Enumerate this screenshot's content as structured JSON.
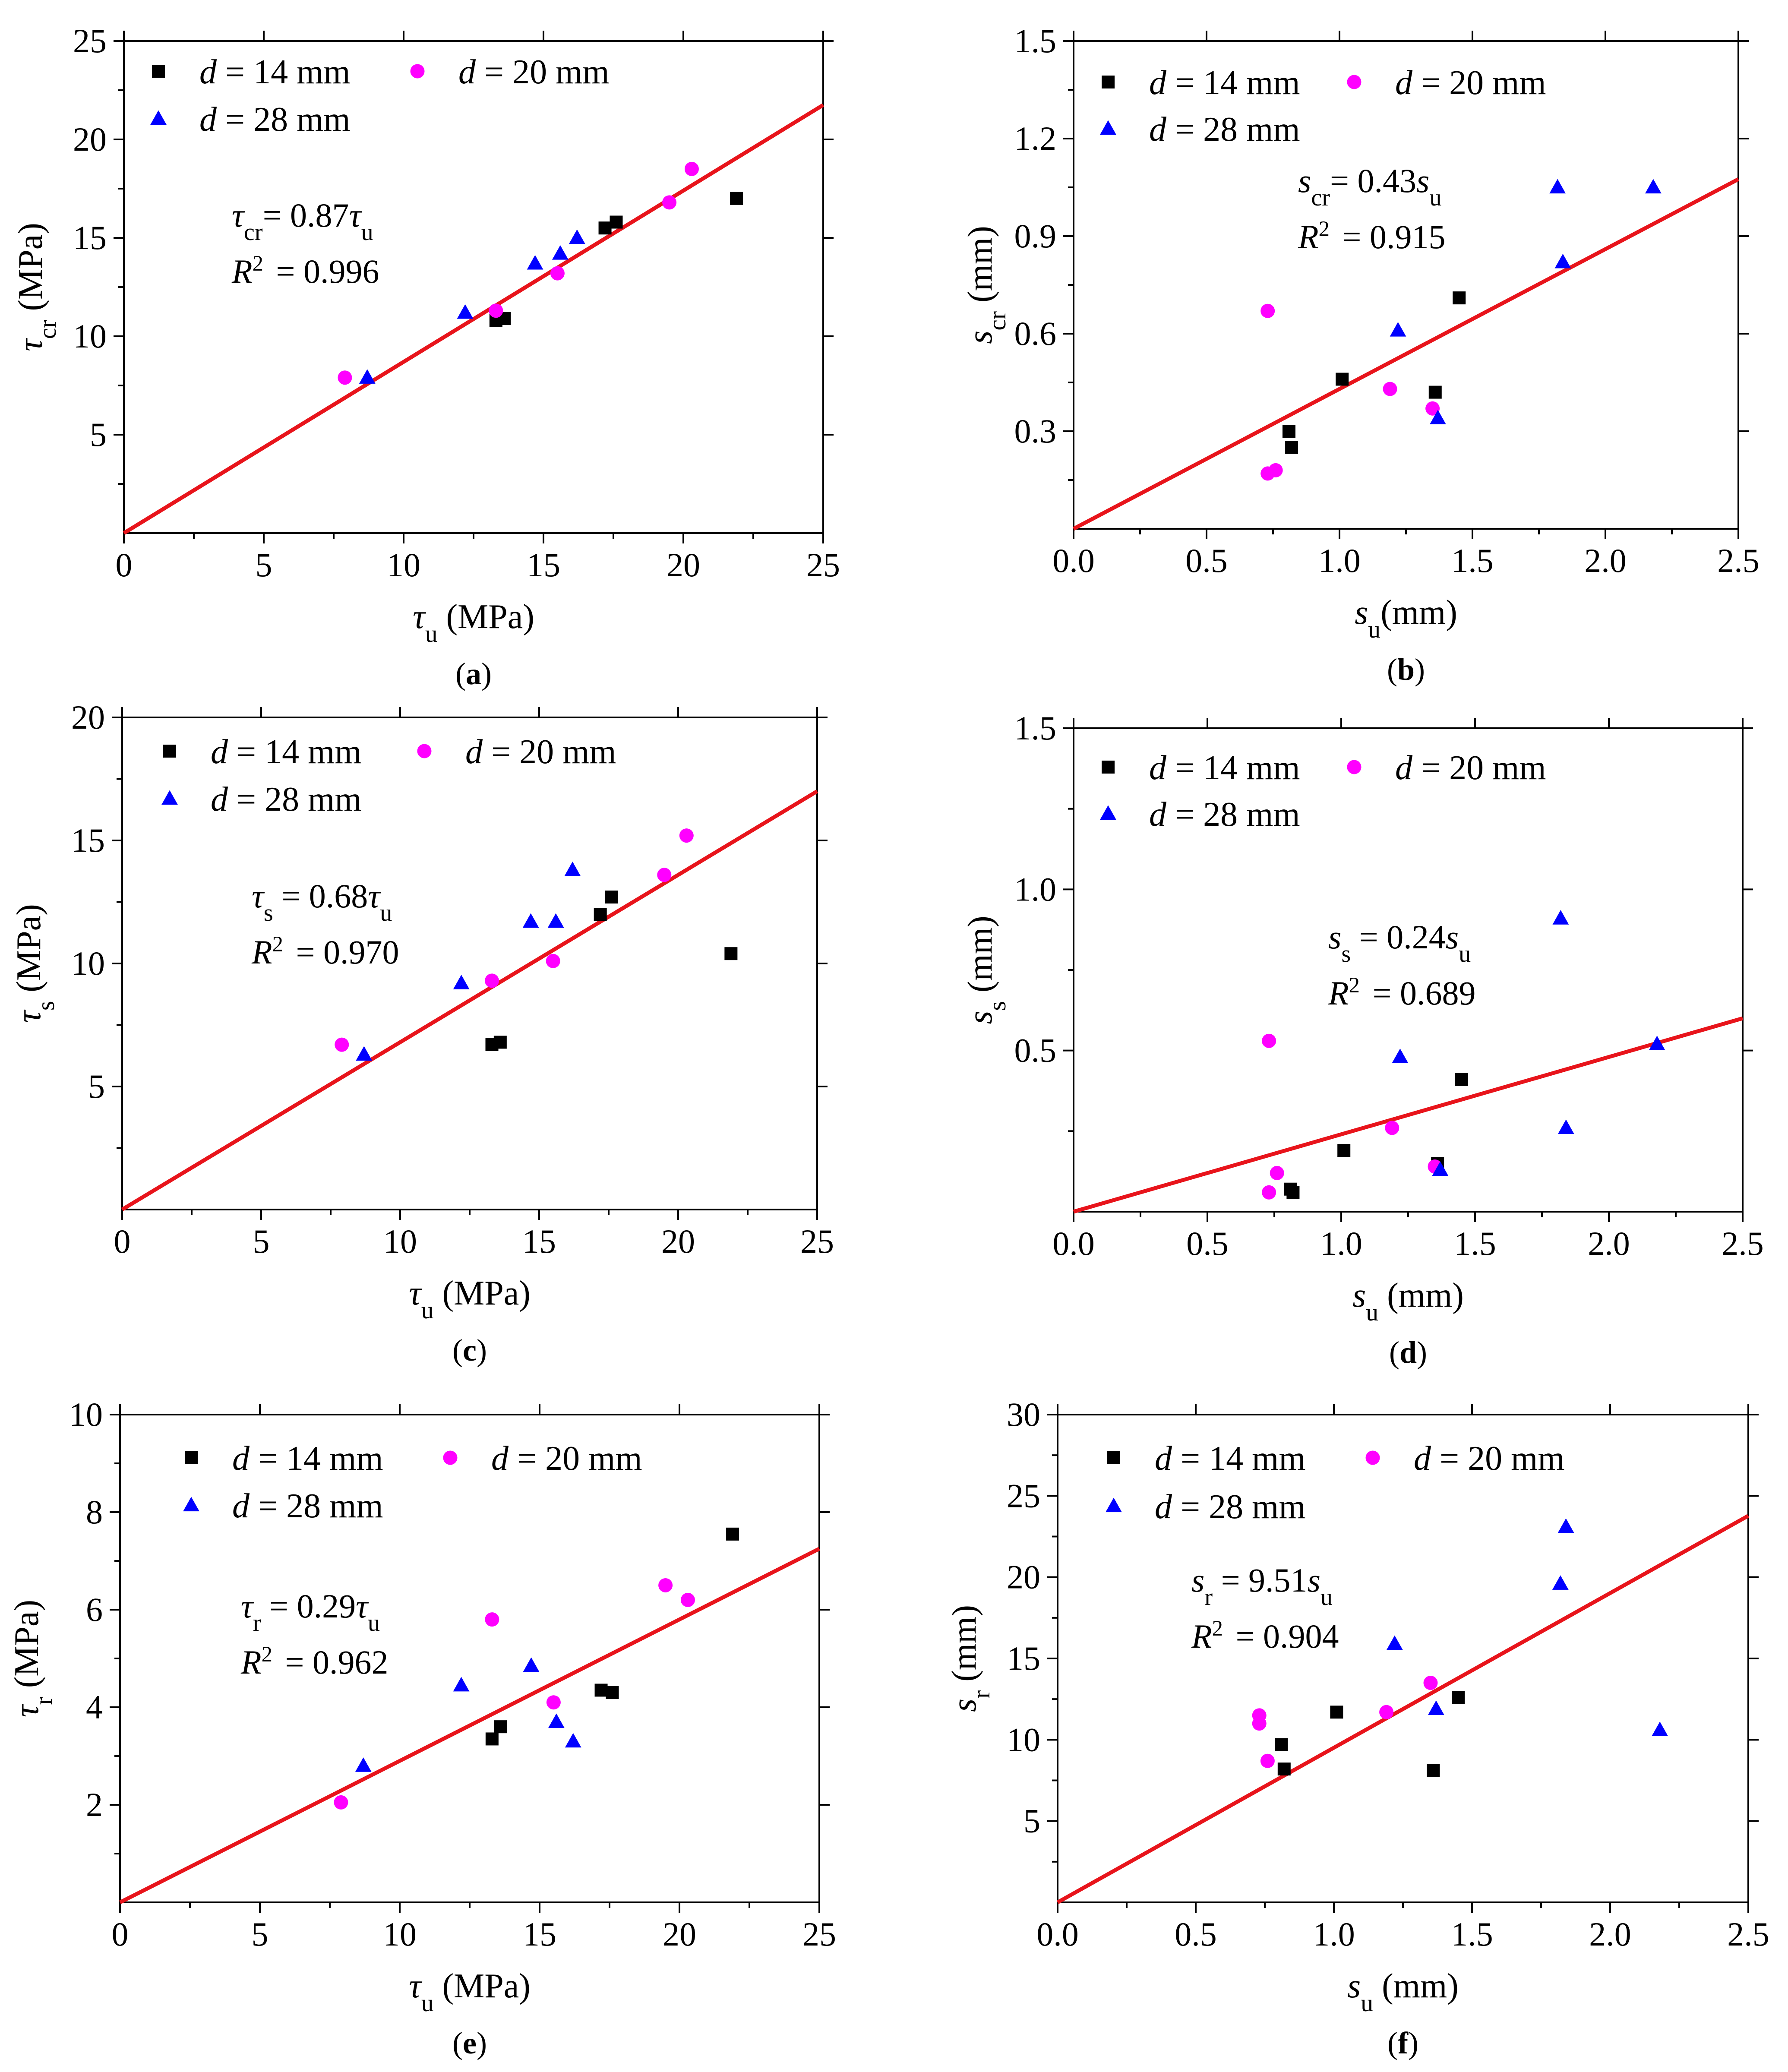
{
  "colors": {
    "d14": "#000000",
    "d20": "#ff00ff",
    "d28": "#0000ff",
    "fit": "#e8141b"
  },
  "legend_labels": {
    "d14": "d = 14 mm",
    "d20": "d = 20 mm",
    "d28": "d = 28 mm"
  },
  "chart_data": [
    {
      "type": "scatter",
      "id": "a",
      "panel_label": "(a)",
      "xlabel": "τu (MPa)",
      "ylabel": "τcr (MPa)",
      "x_symbol": "τ",
      "x_sub": "u",
      "x_unit": " (MPa)",
      "y_symbol": "τ",
      "y_sub": "cr",
      "y_unit": " (MPa)",
      "xlim": [
        0,
        25
      ],
      "ylim": [
        0,
        25
      ],
      "xticks": [
        "0",
        "5",
        "10",
        "15",
        "20",
        "25"
      ],
      "yticks": [
        "5",
        "10",
        "15",
        "20",
        "25"
      ],
      "fit_slope": 0.87,
      "equation": "τcr= 0.87τu",
      "eq_lhs": "τ",
      "eq_lhs_sub": "cr",
      "eq_rhs": "= 0.87",
      "eq_var": "τ",
      "eq_var_sub": "u",
      "r2": "R2 = 0.996",
      "r2_value": "= 0.996",
      "series": [
        {
          "name": "d = 14 mm",
          "marker": "square",
          "x": [
            13.3,
            13.6,
            17.2,
            17.6,
            21.9
          ],
          "y": [
            10.8,
            10.9,
            15.5,
            15.8,
            17.0
          ]
        },
        {
          "name": "d = 20 mm",
          "marker": "circle",
          "x": [
            7.9,
            13.3,
            15.5,
            19.5,
            20.3
          ],
          "y": [
            7.9,
            11.3,
            13.2,
            16.8,
            18.5
          ]
        },
        {
          "name": "d = 28 mm",
          "marker": "triangle",
          "x": [
            8.7,
            12.2,
            14.7,
            15.6,
            16.2
          ],
          "y": [
            7.9,
            11.2,
            13.7,
            14.2,
            15.0
          ]
        }
      ]
    },
    {
      "type": "scatter",
      "id": "b",
      "panel_label": "(b)",
      "xlabel": "su(mm)",
      "ylabel": "scr (mm)",
      "x_symbol": "s",
      "x_sub": "u",
      "x_unit": "(mm)",
      "y_symbol": "s",
      "y_sub": "cr",
      "y_unit": " (mm)",
      "xlim": [
        0,
        2.5
      ],
      "ylim": [
        0,
        1.5
      ],
      "xticks": [
        "0.0",
        "0.5",
        "1.0",
        "1.5",
        "2.0",
        "2.5"
      ],
      "yticks": [
        "0.3",
        "0.6",
        "0.9",
        "1.2",
        "1.5"
      ],
      "fit_slope": 0.43,
      "equation": "scr= 0.43su",
      "eq_lhs": "s",
      "eq_lhs_sub": "cr",
      "eq_rhs": "= 0.43",
      "eq_var": "s",
      "eq_var_sub": "u",
      "r2": "R2 = 0.915",
      "r2_value": "= 0.915",
      "series": [
        {
          "name": "d = 14 mm",
          "marker": "square",
          "x": [
            0.81,
            0.82,
            1.01,
            1.36,
            1.45
          ],
          "y": [
            0.3,
            0.25,
            0.46,
            0.42,
            0.71
          ]
        },
        {
          "name": "d = 20 mm",
          "marker": "circle",
          "x": [
            0.73,
            0.73,
            0.76,
            1.19,
            1.35
          ],
          "y": [
            0.67,
            0.17,
            0.18,
            0.43,
            0.37
          ]
        },
        {
          "name": "d = 28 mm",
          "marker": "triangle",
          "x": [
            1.22,
            1.37,
            1.82,
            1.84,
            2.18
          ],
          "y": [
            0.61,
            0.34,
            1.05,
            0.82,
            1.05
          ]
        }
      ]
    },
    {
      "type": "scatter",
      "id": "c",
      "panel_label": "(c)",
      "xlabel": "τu (MPa)",
      "ylabel": "τs (MPa)",
      "x_symbol": "τ",
      "x_sub": "u",
      "x_unit": " (MPa)",
      "y_symbol": "τ",
      "y_sub": "s",
      "y_unit": " (MPa)",
      "xlim": [
        0,
        25
      ],
      "ylim": [
        0,
        20
      ],
      "xticks": [
        "0",
        "5",
        "10",
        "15",
        "20",
        "25"
      ],
      "yticks": [
        "5",
        "10",
        "15",
        "20"
      ],
      "fit_slope": 0.68,
      "equation": "τs = 0.68τu",
      "eq_lhs": "τ",
      "eq_lhs_sub": "s",
      "eq_rhs": " = 0.68",
      "eq_var": "τ",
      "eq_var_sub": "u",
      "r2": "R2 = 0.970",
      "r2_value": "= 0.970",
      "series": [
        {
          "name": "d = 14 mm",
          "marker": "square",
          "x": [
            13.3,
            13.6,
            17.2,
            17.6,
            21.9
          ],
          "y": [
            6.7,
            6.8,
            12.0,
            12.7,
            10.4
          ]
        },
        {
          "name": "d = 20 mm",
          "marker": "circle",
          "x": [
            7.9,
            13.3,
            15.5,
            19.5,
            20.3
          ],
          "y": [
            6.7,
            9.3,
            10.1,
            13.6,
            15.2
          ]
        },
        {
          "name": "d = 28 mm",
          "marker": "triangle",
          "x": [
            8.7,
            12.2,
            14.7,
            15.6,
            16.2
          ],
          "y": [
            6.3,
            9.2,
            11.7,
            11.7,
            13.8
          ]
        }
      ]
    },
    {
      "type": "scatter",
      "id": "d",
      "panel_label": "(d)",
      "xlabel": "su (mm)",
      "ylabel": "ss (mm)",
      "x_symbol": "s",
      "x_sub": "u",
      "x_unit": " (mm)",
      "y_symbol": "s",
      "y_sub": "s",
      "y_unit": " (mm)",
      "xlim": [
        0,
        2.5
      ],
      "ylim": [
        0,
        1.5
      ],
      "xticks": [
        "0.0",
        "0.5",
        "1.0",
        "1.5",
        "2.0",
        "2.5"
      ],
      "yticks": [
        "0.5",
        "1.0",
        "1.5"
      ],
      "fit_slope": 0.24,
      "equation": "ss = 0.24su",
      "eq_lhs": "s",
      "eq_lhs_sub": "s",
      "eq_rhs": " = 0.24",
      "eq_var": "s",
      "eq_var_sub": "u",
      "r2": "R2 = 0.689",
      "r2_value": "= 0.689",
      "series": [
        {
          "name": "d = 14 mm",
          "marker": "square",
          "x": [
            0.81,
            0.82,
            1.01,
            1.36,
            1.45
          ],
          "y": [
            0.07,
            0.06,
            0.19,
            0.15,
            0.41
          ]
        },
        {
          "name": "d = 20 mm",
          "marker": "circle",
          "x": [
            0.73,
            0.73,
            0.76,
            1.19,
            1.35
          ],
          "y": [
            0.53,
            0.06,
            0.12,
            0.26,
            0.14
          ]
        },
        {
          "name": "d = 28 mm",
          "marker": "triangle",
          "x": [
            1.22,
            1.37,
            1.82,
            1.84,
            2.18
          ],
          "y": [
            0.48,
            0.13,
            0.91,
            0.26,
            0.52
          ]
        }
      ]
    },
    {
      "type": "scatter",
      "id": "e",
      "panel_label": "(e)",
      "xlabel": "τu (MPa)",
      "ylabel": "τr (MPa)",
      "x_symbol": "τ",
      "x_sub": "u",
      "x_unit": " (MPa)",
      "y_symbol": "τ",
      "y_sub": "r",
      "y_unit": " (MPa)",
      "xlim": [
        0,
        25
      ],
      "ylim": [
        0,
        10
      ],
      "xticks": [
        "0",
        "5",
        "10",
        "15",
        "20",
        "25"
      ],
      "yticks": [
        "2",
        "4",
        "6",
        "8",
        "10"
      ],
      "fit_slope": 0.29,
      "equation": "τr = 0.29τu",
      "eq_lhs": "τ",
      "eq_lhs_sub": "r",
      "eq_rhs": " = 0.29",
      "eq_var": "τ",
      "eq_var_sub": "u",
      "r2": "R2 = 0.962",
      "r2_value": "= 0.962",
      "series": [
        {
          "name": "d = 14 mm",
          "marker": "square",
          "x": [
            13.3,
            13.6,
            17.2,
            17.6,
            21.9
          ],
          "y": [
            3.35,
            3.6,
            4.35,
            4.3,
            7.55
          ]
        },
        {
          "name": "d = 20 mm",
          "marker": "circle",
          "x": [
            7.9,
            13.3,
            15.5,
            19.5,
            20.3
          ],
          "y": [
            2.05,
            5.8,
            4.1,
            6.5,
            6.2
          ]
        },
        {
          "name": "d = 28 mm",
          "marker": "triangle",
          "x": [
            8.7,
            12.2,
            14.7,
            15.6,
            16.2
          ],
          "y": [
            2.8,
            4.45,
            4.85,
            3.7,
            3.3
          ]
        }
      ]
    },
    {
      "type": "scatter",
      "id": "f",
      "panel_label": "(f)",
      "xlabel": "su  (mm)",
      "ylabel": "sr (mm)",
      "x_symbol": "s",
      "x_sub": "u",
      "x_unit": "  (mm)",
      "y_symbol": "s",
      "y_sub": "r",
      "y_unit": " (mm)",
      "xlim": [
        0,
        2.5
      ],
      "ylim": [
        0,
        30
      ],
      "xticks": [
        "0.0",
        "0.5",
        "1.0",
        "1.5",
        "2.0",
        "2.5"
      ],
      "yticks": [
        "5",
        "10",
        "15",
        "20",
        "25",
        "30"
      ],
      "fit_slope": 9.51,
      "equation": "sr = 9.51su",
      "eq_lhs": "s",
      "eq_lhs_sub": "r",
      "eq_rhs": " = 9.51",
      "eq_var": "s",
      "eq_var_sub": "u",
      "r2": "R2 = 0.904",
      "r2_value": "= 0.904",
      "series": [
        {
          "name": "d = 14 mm",
          "marker": "square",
          "x": [
            0.81,
            0.82,
            1.01,
            1.36,
            1.45
          ],
          "y": [
            9.7,
            8.2,
            11.7,
            8.1,
            12.6
          ]
        },
        {
          "name": "d = 20 mm",
          "marker": "circle",
          "x": [
            0.73,
            0.73,
            0.76,
            1.19,
            1.35
          ],
          "y": [
            11.5,
            11.0,
            8.7,
            11.7,
            13.5
          ]
        },
        {
          "name": "d = 28 mm",
          "marker": "triangle",
          "x": [
            1.22,
            1.37,
            1.82,
            1.84,
            2.18
          ],
          "y": [
            15.9,
            11.9,
            19.6,
            23.1,
            10.6
          ]
        }
      ]
    }
  ]
}
